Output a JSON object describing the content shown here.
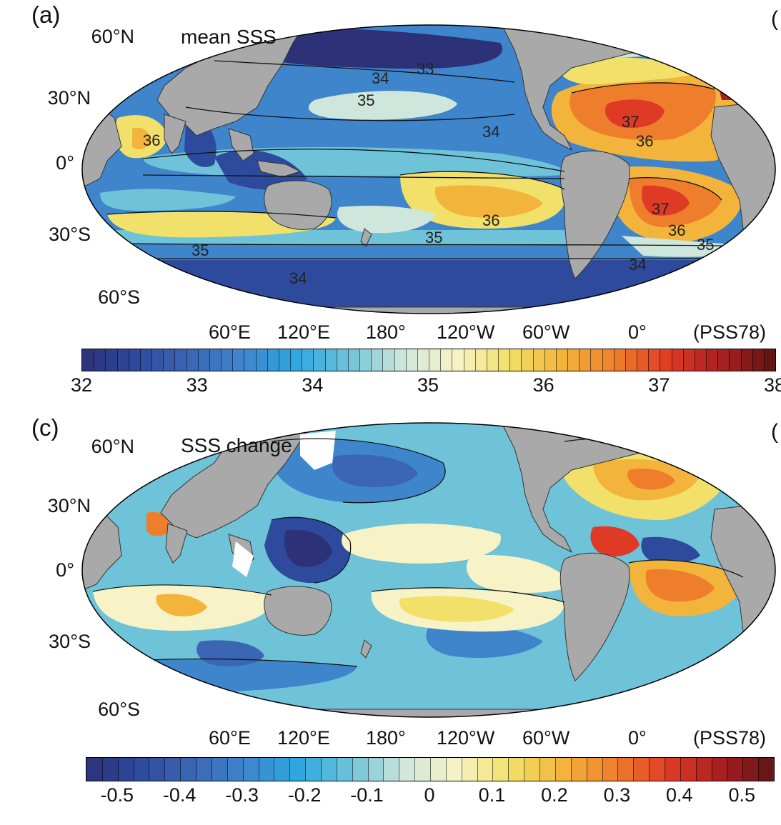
{
  "panels": {
    "a": {
      "letter": "(a)",
      "title": "mean SSS",
      "lat_labels": [
        "60°N",
        "30°N",
        "0°",
        "30°S",
        "60°S"
      ],
      "lon_labels": [
        "60°E",
        "120°E",
        "180°",
        "120°W",
        "60°W",
        "0°"
      ],
      "unit": "(PSS78)",
      "contour_labels": [
        "33",
        "34",
        "35",
        "34",
        "36",
        "36",
        "37",
        "36",
        "37",
        "36",
        "35",
        "35",
        "35",
        "34",
        "34"
      ],
      "colorbar": {
        "min": 32,
        "max": 38,
        "tick_labels": [
          "32",
          "33",
          "34",
          "35",
          "36",
          "37",
          "38"
        ]
      }
    },
    "c": {
      "letter": "(c)",
      "title": "SSS change",
      "lat_labels": [
        "60°N",
        "30°N",
        "0°",
        "30°S",
        "60°S"
      ],
      "lon_labels": [
        "60°E",
        "120°E",
        "180°",
        "120°W",
        "60°W",
        "0°"
      ],
      "unit": "(PSS78)",
      "colorbar": {
        "min": -0.55,
        "max": 0.55,
        "tick_labels": [
          "-0.5",
          "-0.4",
          "-0.3",
          "-0.2",
          "-0.1",
          "0",
          "0.1",
          "0.2",
          "0.3",
          "0.4",
          "0.5"
        ]
      }
    }
  },
  "colors": {
    "land": "#a9a9a9",
    "colormap": [
      "#2c3178",
      "#2e4a9c",
      "#3a66b4",
      "#3f85cc",
      "#2ea7e0",
      "#6ec3d8",
      "#cfe6dc",
      "#f7f3c6",
      "#f1e06a",
      "#f3b43c",
      "#ef7e2c",
      "#de3a25",
      "#a81f21",
      "#5e1414"
    ]
  }
}
